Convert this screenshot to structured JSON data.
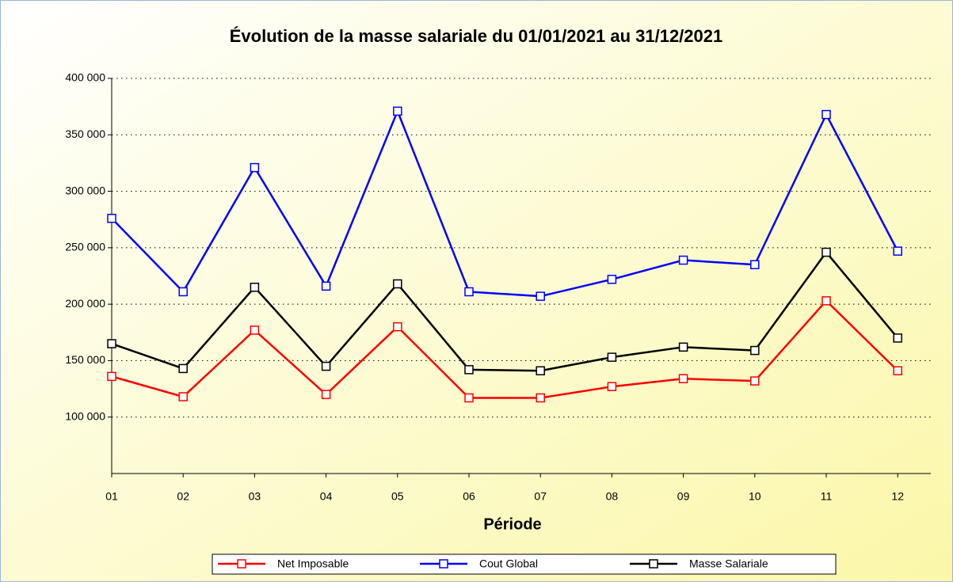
{
  "chart_data": {
    "type": "line",
    "title": "Évolution de la masse salariale du 01/01/2021 au 31/12/2021",
    "x_label": "Période",
    "categories": [
      "01",
      "02",
      "03",
      "04",
      "05",
      "06",
      "07",
      "08",
      "09",
      "10",
      "11",
      "12"
    ],
    "series": [
      {
        "name": "Net Imposable",
        "color": "#ff0000",
        "values": [
          136000,
          118000,
          177000,
          120000,
          180000,
          117000,
          117000,
          127000,
          134000,
          132000,
          203000,
          141000
        ]
      },
      {
        "name": "Cout Global",
        "color": "#0000ff",
        "values": [
          276000,
          211000,
          321000,
          216000,
          371000,
          211000,
          207000,
          222000,
          239000,
          235000,
          368000,
          247000
        ]
      },
      {
        "name": "Masse Salariale",
        "color": "#000000",
        "values": [
          165000,
          143000,
          215000,
          145000,
          218000,
          142000,
          141000,
          153000,
          162000,
          159000,
          246000,
          170000
        ]
      }
    ],
    "ylim": [
      50000,
      400000
    ],
    "yticks": [
      {
        "value": 100000,
        "label": "100 000"
      },
      {
        "value": 150000,
        "label": "150 000"
      },
      {
        "value": 200000,
        "label": "200 000"
      },
      {
        "value": 250000,
        "label": "250 000"
      },
      {
        "value": 300000,
        "label": "300 000"
      },
      {
        "value": 350000,
        "label": "350 000"
      },
      {
        "value": 400000,
        "label": "400 000"
      }
    ],
    "grid": true,
    "legend": "bottom",
    "marker": "square"
  }
}
